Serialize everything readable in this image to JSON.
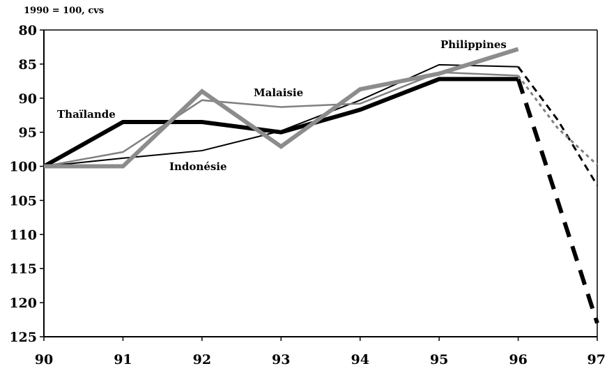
{
  "chart_data": {
    "type": "line",
    "subtitle": "1990 = 100, cvs",
    "y_axis": {
      "inverted": true,
      "ylim": [
        80,
        125
      ],
      "ticks": [
        "80",
        "85",
        "90",
        "95",
        "100",
        "105",
        "110",
        "115",
        "120",
        "125"
      ]
    },
    "x_axis": {
      "xlim": [
        90,
        97
      ],
      "ticks": [
        "90",
        "91",
        "92",
        "93",
        "94",
        "95",
        "96",
        "97"
      ]
    },
    "grid": false,
    "legend": "inline labels",
    "series": [
      {
        "name": "Thaïlande",
        "color": "#000000",
        "weight": "thick",
        "x": [
          90,
          91,
          92,
          93,
          94,
          95,
          96
        ],
        "y": [
          100,
          93.5,
          93.5,
          95,
          91.7,
          87.2,
          87.2
        ],
        "projection": {
          "x": [
            96,
            97
          ],
          "y": [
            87.2,
            123
          ],
          "style": "thick-dashed"
        }
      },
      {
        "name": "Indonésie",
        "color": "#000000",
        "weight": "thin",
        "x": [
          90,
          91,
          92,
          93,
          94,
          95,
          96
        ],
        "y": [
          100,
          98.8,
          97.7,
          94.8,
          90.3,
          85.1,
          85.4
        ],
        "projection": {
          "x": [
            96,
            96.5,
            97
          ],
          "y": [
            85.4,
            93.2,
            102.8
          ],
          "style": "dashed"
        }
      },
      {
        "name": "Malaisie",
        "color": "#808080",
        "weight": "thin",
        "x": [
          90,
          91,
          92,
          93,
          94,
          95,
          96
        ],
        "y": [
          100,
          97.9,
          90.3,
          91.3,
          90.8,
          86.2,
          86.7
        ],
        "projection": {
          "x": [
            96,
            96.5,
            97
          ],
          "y": [
            86.7,
            94.4,
            99.8
          ],
          "style": "dotted"
        }
      },
      {
        "name": "Philippines",
        "color": "#8c8c8c",
        "weight": "thick",
        "x": [
          90,
          91,
          92,
          93,
          94,
          95,
          96
        ],
        "y": [
          100,
          100,
          89,
          97.1,
          88.7,
          86.4,
          82.8
        ],
        "projection": null
      }
    ]
  }
}
